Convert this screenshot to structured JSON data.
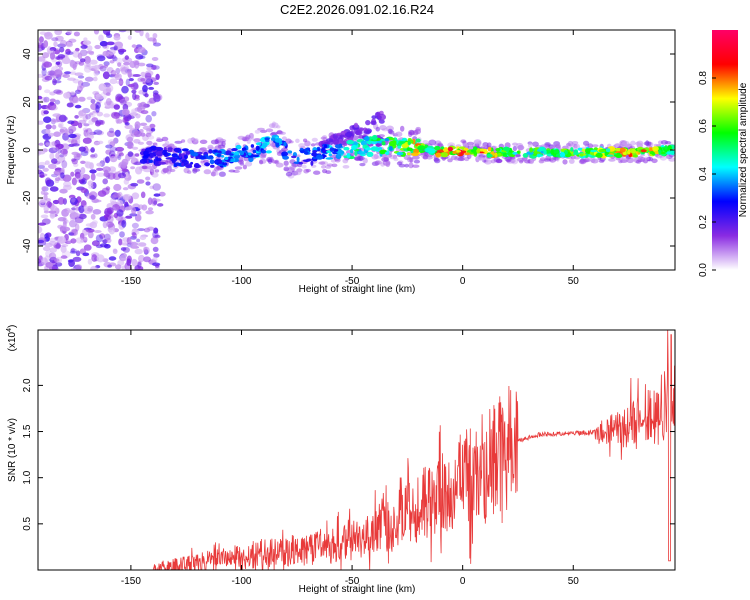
{
  "chart_data": [
    {
      "type": "heatmap",
      "title": "C2E2.2026.091.02.16.R24",
      "xlabel": "Height of straight line (km)",
      "ylabel": "Frequency (Hz)",
      "xlim": [
        -192,
        96
      ],
      "ylim": [
        -50,
        50
      ],
      "x_ticks": [
        -150,
        -100,
        -50,
        0,
        50
      ],
      "y_ticks": [
        -40,
        -20,
        0,
        20,
        40
      ],
      "colorbar": {
        "label": "Normalized spectral amplitude",
        "range": [
          0,
          1
        ],
        "ticks": [
          "0.0",
          "0.2",
          "0.4",
          "0.6",
          "0.8"
        ],
        "colors": [
          "#ffffff",
          "#8a2be2",
          "#0000ff",
          "#00ffff",
          "#00ff00",
          "#ffff00",
          "#ff0000",
          "#ff0066"
        ]
      },
      "ridge": [
        {
          "x": -145,
          "y": -2,
          "amp": 0.3
        },
        {
          "x": -130,
          "y": -3,
          "amp": 0.3
        },
        {
          "x": -115,
          "y": -4,
          "amp": 0.35
        },
        {
          "x": -100,
          "y": -2,
          "amp": 0.4
        },
        {
          "x": -85,
          "y": 3,
          "amp": 0.45
        },
        {
          "x": -78,
          "y": -3,
          "amp": 0.35
        },
        {
          "x": -65,
          "y": -2,
          "amp": 0.4
        },
        {
          "x": -50,
          "y": 0,
          "amp": 0.5
        },
        {
          "x": -40,
          "y": 2,
          "amp": 0.55
        },
        {
          "x": -30,
          "y": 1,
          "amp": 0.6
        },
        {
          "x": -20,
          "y": 1,
          "amp": 0.8
        },
        {
          "x": -15,
          "y": 0,
          "amp": 0.5
        },
        {
          "x": -10,
          "y": -1,
          "amp": 0.9
        },
        {
          "x": 0,
          "y": 0,
          "amp": 0.95
        },
        {
          "x": 10,
          "y": -1,
          "amp": 0.85
        },
        {
          "x": 20,
          "y": -1,
          "amp": 0.6
        },
        {
          "x": 40,
          "y": -1,
          "amp": 0.6
        },
        {
          "x": 60,
          "y": -1,
          "amp": 0.7
        },
        {
          "x": 80,
          "y": -1,
          "amp": 0.85
        },
        {
          "x": 95,
          "y": 0,
          "amp": 0.6
        }
      ]
    },
    {
      "type": "line",
      "xlabel": "Height of straight line (km)",
      "ylabel": "SNR (10 * v/v)",
      "y_multiplier": "(x10",
      "y_multiplier_exp": "4",
      "xlim": [
        -192,
        96
      ],
      "ylim": [
        0,
        2.6
      ],
      "x_ticks": [
        -150,
        -100,
        -50,
        0,
        50
      ],
      "y_ticks": [
        0.5,
        1.0,
        1.5,
        2.0
      ],
      "y_tick_labels": [
        "0.5",
        "1.0",
        "1.5",
        "2.0"
      ],
      "line_color": "#e83a3a",
      "trend": [
        {
          "x": -192,
          "y": 0.0
        },
        {
          "x": -140,
          "y": 0.0
        },
        {
          "x": -125,
          "y": 0.05
        },
        {
          "x": -100,
          "y": 0.15
        },
        {
          "x": -80,
          "y": 0.2
        },
        {
          "x": -60,
          "y": 0.25
        },
        {
          "x": -45,
          "y": 0.35
        },
        {
          "x": -35,
          "y": 0.45
        },
        {
          "x": -25,
          "y": 0.6
        },
        {
          "x": -15,
          "y": 0.75
        },
        {
          "x": -5,
          "y": 0.9
        },
        {
          "x": 5,
          "y": 1.05
        },
        {
          "x": 15,
          "y": 1.25
        },
        {
          "x": 25,
          "y": 1.4
        },
        {
          "x": 35,
          "y": 1.47
        },
        {
          "x": 50,
          "y": 1.48
        },
        {
          "x": 65,
          "y": 1.5
        },
        {
          "x": 80,
          "y": 1.6
        },
        {
          "x": 90,
          "y": 1.75
        },
        {
          "x": 95,
          "y": 1.85
        }
      ]
    }
  ]
}
